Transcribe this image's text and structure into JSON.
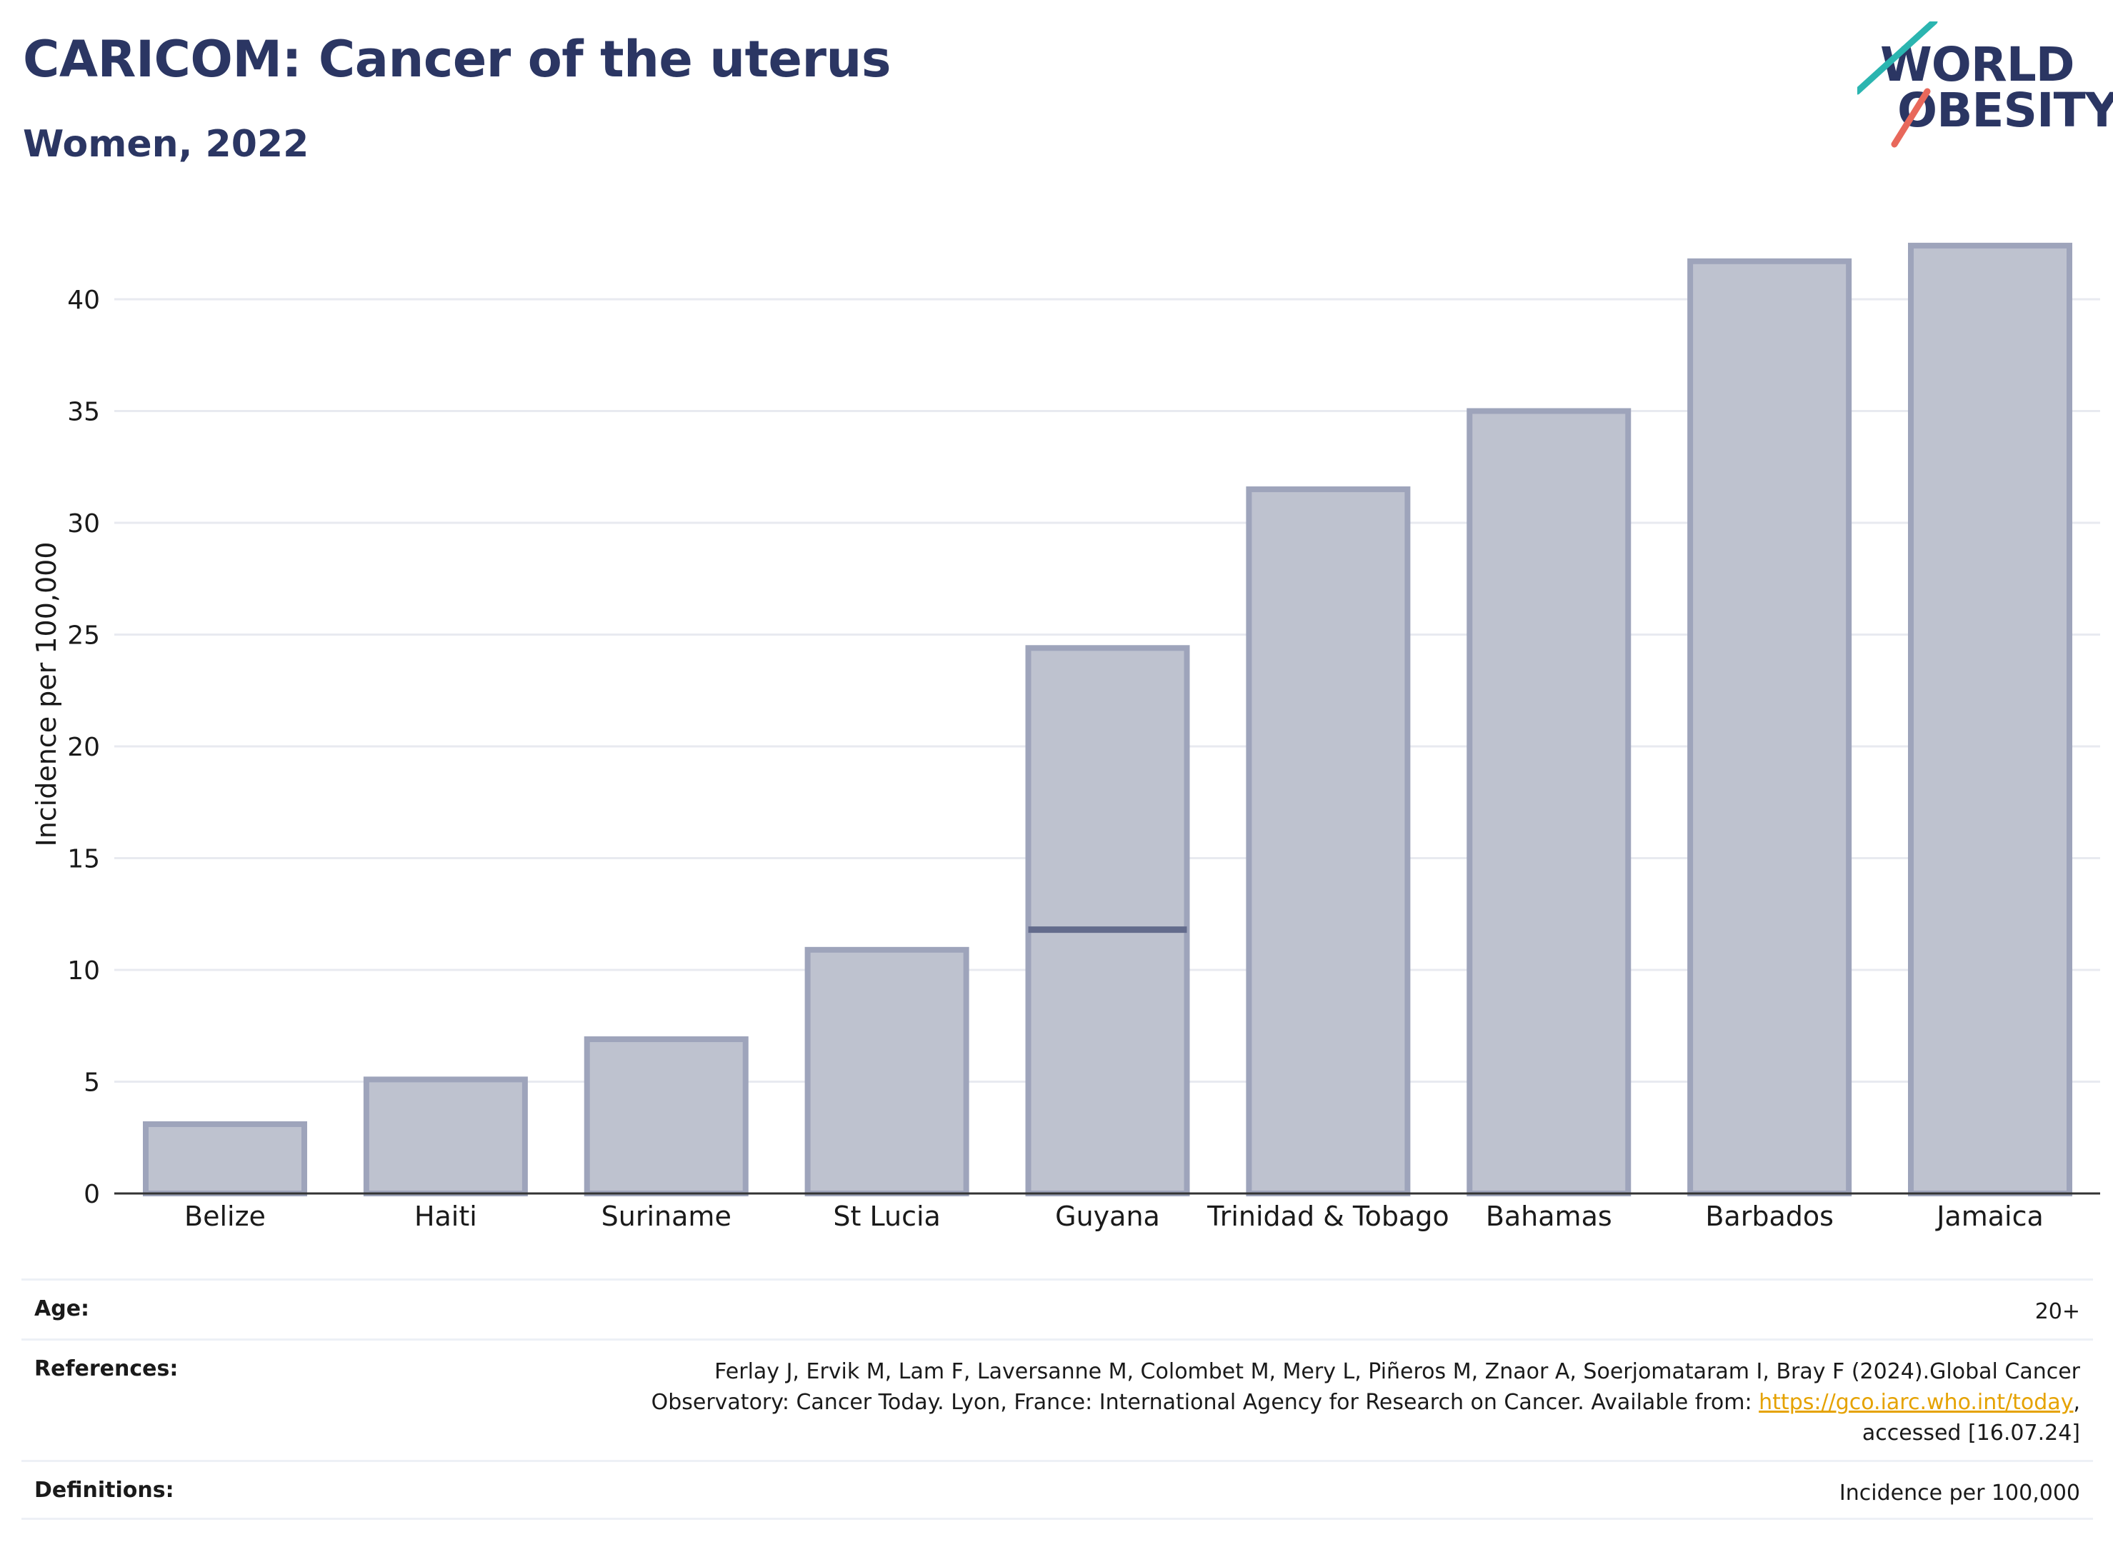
{
  "header": {
    "title": "CARICOM: Cancer of the uterus",
    "subtitle": "Women, 2022"
  },
  "logo": {
    "line1": "WORLD",
    "line2": "OBESITY",
    "accent_colors": [
      "#2bb5b0",
      "#e8685b"
    ]
  },
  "chart_data": {
    "type": "bar",
    "categories": [
      "Belize",
      "Haiti",
      "Suriname",
      "St Lucia",
      "Guyana",
      "Trinidad & Tobago",
      "Bahamas",
      "Barbados",
      "Jamaica"
    ],
    "values": [
      3.1,
      5.1,
      6.9,
      10.9,
      24.4,
      31.5,
      35.0,
      41.7,
      42.4
    ],
    "reference_line": {
      "category": "Guyana",
      "value": 11.8
    },
    "ylabel": "Incidence per 100,000",
    "xlabel": "",
    "ylim": [
      0,
      43
    ],
    "yticks": [
      0,
      5,
      10,
      15,
      20,
      25,
      30,
      35,
      40
    ],
    "grid": true,
    "bar_color": "#bec2cf",
    "bar_edge_color": "#9ea4bb",
    "line_color": "#636b8c"
  },
  "meta": {
    "age_label": "Age:",
    "age_value": "20+",
    "references_label": "References:",
    "references_line1": "Ferlay J, Ervik M, Lam F, Laversanne M, Colombet M, Mery L, Piñeros M, Znaor A, Soerjomataram I, Bray F (2024).Global Cancer",
    "references_line2": "Observatory: Cancer Today. Lyon, France: International Agency for Research on Cancer. Available from: ",
    "references_link": "https://gco.iarc.who.int/today",
    "references_line2_end": ",",
    "references_line3": "accessed [16.07.24]",
    "definitions_label": "Definitions:",
    "definitions_value": "Incidence per 100,000"
  }
}
